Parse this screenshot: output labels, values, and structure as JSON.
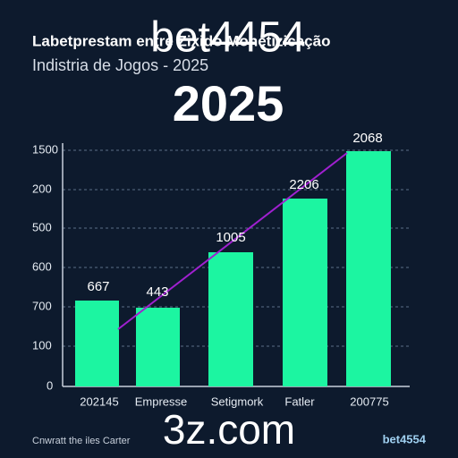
{
  "header": {
    "title": "Labetprestam entre Zixido Monetizicação",
    "overlay": "bet4454",
    "subtitle": "Indistria de Jogos - 2025",
    "year": "2025"
  },
  "axis": {
    "labels": [
      "1500",
      "200",
      "500",
      "600",
      "700",
      "100",
      "0"
    ]
  },
  "bars": [
    {
      "label": "667",
      "category": "202145"
    },
    {
      "label": "443",
      "category": "Empresse"
    },
    {
      "label": "1005",
      "category": "Setigmork"
    },
    {
      "label": "2206",
      "category": "Fatler"
    },
    {
      "label": "2068",
      "category": "200775"
    }
  ],
  "footer": {
    "domain": "3z.com",
    "credit": "Cnwratt the iles Carter",
    "brand": "bet4554"
  }
}
